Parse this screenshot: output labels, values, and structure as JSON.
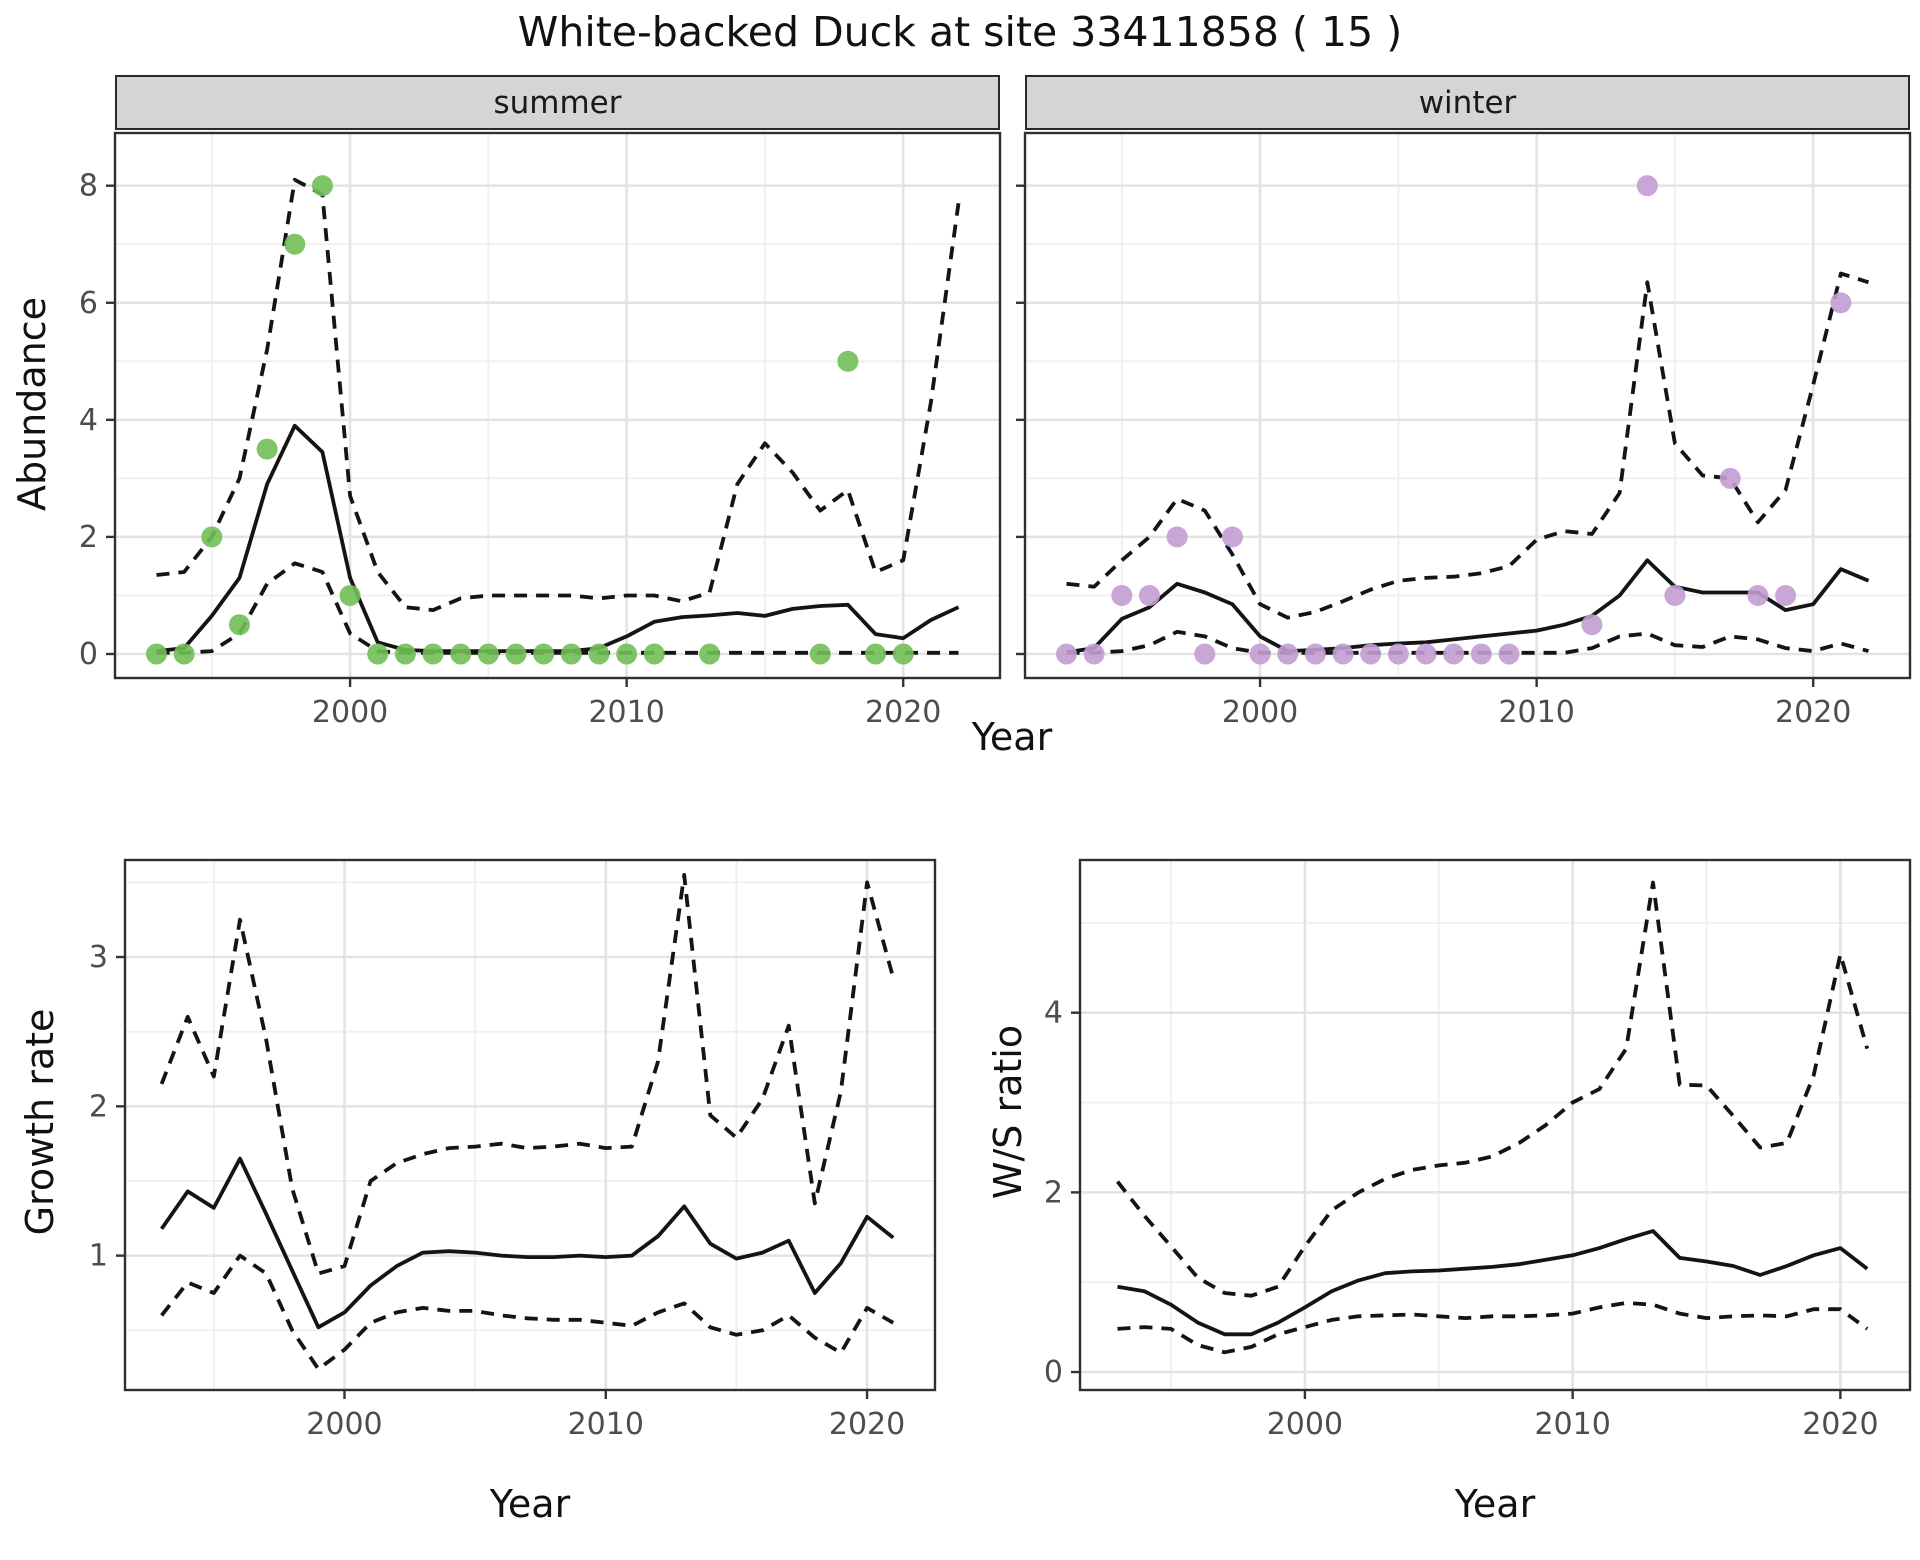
{
  "title": "White-backed Duck at site 33411858 ( 15 )",
  "axes": {
    "x_label": "Year",
    "abundance_label": "Abundance",
    "growth_label": "Growth rate",
    "ws_label": "W/S ratio"
  },
  "colors": {
    "summer_point": "#72BE58",
    "winter_point": "#C29CD2",
    "line": "#141414",
    "grid_major": "#e3e3e3",
    "grid_minor": "#efefef",
    "panel_border": "#2f2f2f",
    "tick_text": "#4d4d4d",
    "strip_bg": "#d5d5d5"
  },
  "chart_data": [
    {
      "id": "summer",
      "type": "line",
      "facet_label": "summer",
      "xlim": [
        1991.5,
        2023.5
      ],
      "ylim": [
        -0.41,
        8.9
      ],
      "x_ticks": [
        2000,
        2010,
        2020
      ],
      "x_minor": [
        1995,
        2005,
        2015
      ],
      "y_ticks": [
        0,
        2,
        4,
        6,
        8
      ],
      "y_minor": [
        1,
        3,
        5,
        7
      ],
      "series": [
        {
          "name": "mean",
          "style": "solid",
          "x": [
            1993,
            1994,
            1995,
            1996,
            1997,
            1998,
            1999,
            2000,
            2001,
            2002,
            2003,
            2004,
            2005,
            2006,
            2007,
            2008,
            2009,
            2010,
            2011,
            2012,
            2013,
            2014,
            2015,
            2016,
            2017,
            2018,
            2019,
            2020,
            2021,
            2022
          ],
          "y": [
            0.05,
            0.1,
            0.65,
            1.3,
            2.9,
            3.9,
            3.45,
            1.3,
            0.2,
            0.07,
            0.05,
            0.05,
            0.05,
            0.05,
            0.05,
            0.05,
            0.1,
            0.3,
            0.55,
            0.63,
            0.66,
            0.7,
            0.65,
            0.77,
            0.82,
            0.84,
            0.34,
            0.27,
            0.58,
            0.8
          ]
        },
        {
          "name": "upper_ci",
          "style": "dashed",
          "x": [
            1993,
            1994,
            1995,
            1996,
            1997,
            1998,
            1999,
            2000,
            2001,
            2002,
            2003,
            2004,
            2005,
            2006,
            2007,
            2008,
            2009,
            2010,
            2011,
            2012,
            2013,
            2014,
            2015,
            2016,
            2017,
            2018,
            2019,
            2020,
            2021,
            2022
          ],
          "y": [
            1.35,
            1.4,
            2.0,
            3.0,
            5.2,
            8.1,
            7.85,
            2.7,
            1.4,
            0.8,
            0.75,
            0.95,
            1.0,
            1.0,
            1.0,
            1.0,
            0.95,
            1.0,
            1.0,
            0.9,
            1.05,
            2.9,
            3.6,
            3.1,
            2.45,
            2.8,
            1.4,
            1.6,
            4.3,
            7.7
          ]
        },
        {
          "name": "lower_ci",
          "style": "dashed",
          "x": [
            1993,
            1994,
            1995,
            1996,
            1997,
            1998,
            1999,
            2000,
            2001,
            2002,
            2003,
            2004,
            2005,
            2006,
            2007,
            2008,
            2009,
            2010,
            2011,
            2012,
            2013,
            2014,
            2015,
            2016,
            2017,
            2018,
            2019,
            2020,
            2021,
            2022
          ],
          "y": [
            0.02,
            0.02,
            0.05,
            0.35,
            1.2,
            1.55,
            1.4,
            0.35,
            0.05,
            0.02,
            0.02,
            0.02,
            0.02,
            0.02,
            0.02,
            0.02,
            0.02,
            0.02,
            0.02,
            0.02,
            0.02,
            0.02,
            0.02,
            0.02,
            0.02,
            0.02,
            0.02,
            0.02,
            0.02,
            0.02
          ]
        },
        {
          "name": "observed",
          "style": "points",
          "color": "#72BE58",
          "x": [
            1993,
            1994,
            1995,
            1996,
            1997,
            1998,
            1999,
            2000,
            2001,
            2002,
            2003,
            2004,
            2005,
            2006,
            2007,
            2008,
            2009,
            2010,
            2011,
            2013,
            2017,
            2018,
            2019,
            2020
          ],
          "y": [
            0,
            0,
            2,
            0.5,
            3.5,
            7,
            8,
            1,
            0,
            0,
            0,
            0,
            0,
            0,
            0,
            0,
            0,
            0,
            0,
            0,
            0,
            5,
            0,
            0
          ]
        }
      ]
    },
    {
      "id": "winter",
      "type": "line",
      "facet_label": "winter",
      "xlim": [
        1991.5,
        2023.5
      ],
      "ylim": [
        -0.41,
        8.9
      ],
      "x_ticks": [
        2000,
        2010,
        2020
      ],
      "x_minor": [
        1995,
        2005,
        2015
      ],
      "y_ticks": [
        0,
        2,
        4,
        6,
        8
      ],
      "y_minor": [
        1,
        3,
        5,
        7
      ],
      "series": [
        {
          "name": "mean",
          "style": "solid",
          "x": [
            1993,
            1994,
            1995,
            1996,
            1997,
            1998,
            1999,
            2000,
            2001,
            2002,
            2003,
            2004,
            2005,
            2006,
            2007,
            2008,
            2009,
            2010,
            2011,
            2012,
            2013,
            2014,
            2015,
            2016,
            2017,
            2018,
            2019,
            2020,
            2021,
            2022
          ],
          "y": [
            0.03,
            0.1,
            0.6,
            0.8,
            1.2,
            1.05,
            0.85,
            0.3,
            0.05,
            0.07,
            0.1,
            0.15,
            0.18,
            0.2,
            0.25,
            0.3,
            0.35,
            0.4,
            0.5,
            0.65,
            1.0,
            1.6,
            1.15,
            1.05,
            1.05,
            1.05,
            0.75,
            0.85,
            1.45,
            1.25
          ]
        },
        {
          "name": "upper_ci",
          "style": "dashed",
          "x": [
            1993,
            1994,
            1995,
            1996,
            1997,
            1998,
            1999,
            2000,
            2001,
            2002,
            2003,
            2004,
            2005,
            2006,
            2007,
            2008,
            2009,
            2010,
            2011,
            2012,
            2013,
            2014,
            2015,
            2016,
            2017,
            2018,
            2019,
            2020,
            2021,
            2022
          ],
          "y": [
            1.2,
            1.15,
            1.6,
            2.0,
            2.65,
            2.45,
            1.7,
            0.85,
            0.62,
            0.72,
            0.9,
            1.1,
            1.25,
            1.3,
            1.32,
            1.38,
            1.5,
            1.95,
            2.1,
            2.05,
            2.75,
            6.35,
            3.6,
            3.05,
            3.0,
            2.25,
            2.8,
            4.6,
            6.5,
            6.35
          ]
        },
        {
          "name": "lower_ci",
          "style": "dashed",
          "x": [
            1993,
            1994,
            1995,
            1996,
            1997,
            1998,
            1999,
            2000,
            2001,
            2002,
            2003,
            2004,
            2005,
            2006,
            2007,
            2008,
            2009,
            2010,
            2011,
            2012,
            2013,
            2014,
            2015,
            2016,
            2017,
            2018,
            2019,
            2020,
            2021,
            2022
          ],
          "y": [
            0.02,
            0.02,
            0.05,
            0.15,
            0.38,
            0.3,
            0.1,
            0.02,
            0.02,
            0.02,
            0.02,
            0.02,
            0.02,
            0.02,
            0.02,
            0.02,
            0.02,
            0.02,
            0.02,
            0.1,
            0.3,
            0.35,
            0.15,
            0.12,
            0.3,
            0.25,
            0.1,
            0.05,
            0.18,
            0.05
          ]
        },
        {
          "name": "observed",
          "style": "points",
          "color": "#C29CD2",
          "x": [
            1993,
            1994,
            1995,
            1996,
            1997,
            1998,
            1999,
            2000,
            2001,
            2002,
            2003,
            2004,
            2005,
            2006,
            2007,
            2008,
            2009,
            2012,
            2014,
            2015,
            2017,
            2018,
            2019,
            2021
          ],
          "y": [
            0,
            0,
            1,
            1,
            2,
            0,
            2,
            0,
            0,
            0,
            0,
            0,
            0,
            0,
            0,
            0,
            0,
            0.5,
            8,
            1,
            3,
            1,
            1,
            6
          ]
        }
      ]
    },
    {
      "id": "growth_rate",
      "type": "line",
      "facet_label": "",
      "xlim": [
        1991.6,
        2022.6
      ],
      "ylim": [
        0.1,
        3.65
      ],
      "x_ticks": [
        2000,
        2010,
        2020
      ],
      "x_minor": [
        1995,
        2005,
        2015
      ],
      "y_ticks": [
        1,
        2,
        3
      ],
      "y_minor": [
        0.5,
        1.5,
        2.5,
        3.5
      ],
      "series": [
        {
          "name": "mean",
          "style": "solid",
          "x": [
            1993,
            1994,
            1995,
            1996,
            1997,
            1998,
            1999,
            2000,
            2001,
            2002,
            2003,
            2004,
            2005,
            2006,
            2007,
            2008,
            2009,
            2010,
            2011,
            2012,
            2013,
            2014,
            2015,
            2016,
            2017,
            2018,
            2019,
            2020,
            2021
          ],
          "y": [
            1.18,
            1.43,
            1.32,
            1.65,
            1.28,
            0.9,
            0.52,
            0.62,
            0.8,
            0.93,
            1.02,
            1.03,
            1.02,
            1.0,
            0.99,
            0.99,
            1.0,
            0.99,
            1.0,
            1.13,
            1.33,
            1.08,
            0.98,
            1.02,
            1.1,
            0.75,
            0.95,
            1.26,
            1.12
          ]
        },
        {
          "name": "upper_ci",
          "style": "dashed",
          "x": [
            1993,
            1994,
            1995,
            1996,
            1997,
            1998,
            1999,
            2000,
            2001,
            2002,
            2003,
            2004,
            2005,
            2006,
            2007,
            2008,
            2009,
            2010,
            2011,
            2012,
            2013,
            2014,
            2015,
            2016,
            2017,
            2018,
            2019,
            2020,
            2021
          ],
          "y": [
            2.15,
            2.6,
            2.2,
            3.25,
            2.45,
            1.45,
            0.88,
            0.93,
            1.5,
            1.62,
            1.68,
            1.72,
            1.73,
            1.75,
            1.72,
            1.73,
            1.75,
            1.72,
            1.73,
            2.3,
            3.55,
            1.94,
            1.79,
            2.05,
            2.54,
            1.35,
            2.1,
            3.5,
            2.86
          ]
        },
        {
          "name": "lower_ci",
          "style": "dashed",
          "x": [
            1993,
            1994,
            1995,
            1996,
            1997,
            1998,
            1999,
            2000,
            2001,
            2002,
            2003,
            2004,
            2005,
            2006,
            2007,
            2008,
            2009,
            2010,
            2011,
            2012,
            2013,
            2014,
            2015,
            2016,
            2017,
            2018,
            2019,
            2020,
            2021
          ],
          "y": [
            0.6,
            0.82,
            0.75,
            1.0,
            0.88,
            0.5,
            0.24,
            0.37,
            0.55,
            0.62,
            0.65,
            0.63,
            0.63,
            0.6,
            0.58,
            0.57,
            0.57,
            0.55,
            0.53,
            0.62,
            0.68,
            0.52,
            0.47,
            0.5,
            0.6,
            0.45,
            0.35,
            0.65,
            0.55
          ]
        }
      ]
    },
    {
      "id": "ws_ratio",
      "type": "line",
      "facet_label": "",
      "xlim": [
        1991.6,
        2022.6
      ],
      "ylim": [
        -0.2,
        5.7
      ],
      "x_ticks": [
        2000,
        2010,
        2020
      ],
      "x_minor": [
        1995,
        2005,
        2015
      ],
      "y_ticks": [
        0,
        2,
        4
      ],
      "y_minor": [
        1,
        3,
        5
      ],
      "series": [
        {
          "name": "mean",
          "style": "solid",
          "x": [
            1993,
            1994,
            1995,
            1996,
            1997,
            1998,
            1999,
            2000,
            2001,
            2002,
            2003,
            2004,
            2005,
            2006,
            2007,
            2008,
            2009,
            2010,
            2011,
            2012,
            2013,
            2014,
            2015,
            2016,
            2017,
            2018,
            2019,
            2020,
            2021
          ],
          "y": [
            0.95,
            0.9,
            0.75,
            0.55,
            0.42,
            0.42,
            0.55,
            0.72,
            0.9,
            1.02,
            1.1,
            1.12,
            1.13,
            1.15,
            1.17,
            1.2,
            1.25,
            1.3,
            1.38,
            1.48,
            1.57,
            1.27,
            1.23,
            1.18,
            1.08,
            1.18,
            1.3,
            1.38,
            1.15
          ]
        },
        {
          "name": "upper_ci",
          "style": "dashed",
          "x": [
            1993,
            1994,
            1995,
            1996,
            1997,
            1998,
            1999,
            2000,
            2001,
            2002,
            2003,
            2004,
            2005,
            2006,
            2007,
            2008,
            2009,
            2010,
            2011,
            2012,
            2013,
            2014,
            2015,
            2016,
            2017,
            2018,
            2019,
            2020,
            2021
          ],
          "y": [
            2.12,
            1.74,
            1.4,
            1.05,
            0.88,
            0.85,
            0.95,
            1.4,
            1.8,
            2.0,
            2.15,
            2.25,
            2.3,
            2.33,
            2.4,
            2.55,
            2.75,
            3.0,
            3.15,
            3.6,
            5.45,
            3.2,
            3.19,
            2.85,
            2.5,
            2.55,
            3.3,
            4.65,
            3.6
          ]
        },
        {
          "name": "lower_ci",
          "style": "dashed",
          "x": [
            1993,
            1994,
            1995,
            1996,
            1997,
            1998,
            1999,
            2000,
            2001,
            2002,
            2003,
            2004,
            2005,
            2006,
            2007,
            2008,
            2009,
            2010,
            2011,
            2012,
            2013,
            2014,
            2015,
            2016,
            2017,
            2018,
            2019,
            2020,
            2021
          ],
          "y": [
            0.48,
            0.5,
            0.48,
            0.3,
            0.22,
            0.28,
            0.42,
            0.5,
            0.58,
            0.62,
            0.63,
            0.64,
            0.62,
            0.6,
            0.62,
            0.62,
            0.63,
            0.65,
            0.72,
            0.77,
            0.75,
            0.65,
            0.6,
            0.62,
            0.63,
            0.62,
            0.7,
            0.7,
            0.48
          ]
        }
      ]
    }
  ]
}
